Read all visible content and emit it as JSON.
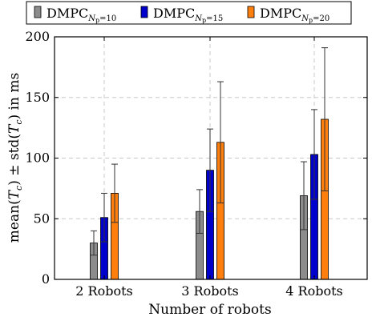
{
  "chart_data": {
    "type": "bar",
    "categories": [
      "2 Robots",
      "3 Robots",
      "4 Robots"
    ],
    "series": [
      {
        "name": "DMPC",
        "subscript": "Np=10",
        "color": "#8c8c8c",
        "values": [
          30,
          56,
          69
        ],
        "errors": [
          10,
          18,
          28
        ]
      },
      {
        "name": "DMPC",
        "subscript": "Np=15",
        "color": "#0000cc",
        "values": [
          51,
          90,
          103
        ],
        "errors": [
          20,
          34,
          37
        ]
      },
      {
        "name": "DMPC",
        "subscript": "Np=20",
        "color": "#ff7f0e",
        "values": [
          71,
          113,
          132
        ],
        "errors": [
          24,
          50,
          59
        ]
      }
    ],
    "xlabel": "Number of robots",
    "ylabel": "mean(T_c) ± std(T_c) in ms",
    "ylim": [
      0,
      200
    ],
    "yticks": [
      0,
      50,
      100,
      150,
      200
    ],
    "grid": true,
    "legend_position": "top"
  }
}
